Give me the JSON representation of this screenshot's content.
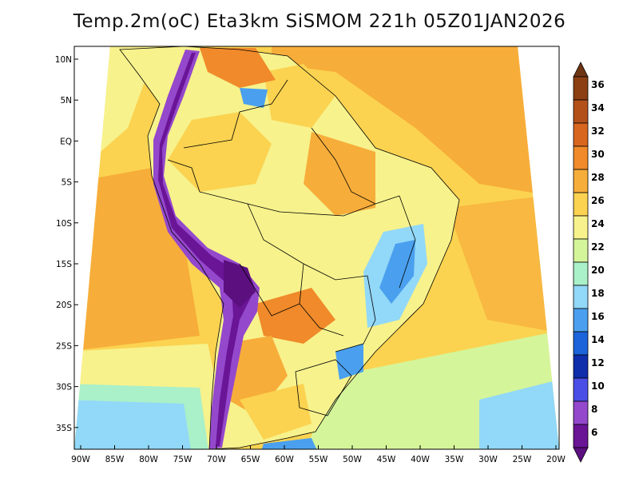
{
  "title": "Temp.2m(oC) Eta3km SiSMOM 221h 05Z01JAN2026",
  "lat_ticks": [
    "10N",
    "5N",
    "EQ",
    "5S",
    "10S",
    "15S",
    "20S",
    "25S",
    "30S",
    "35S"
  ],
  "lon_ticks": [
    "90W",
    "85W",
    "80W",
    "75W",
    "70W",
    "65W",
    "60W",
    "55W",
    "50W",
    "45W",
    "40W",
    "35W",
    "30W",
    "25W",
    "20W"
  ],
  "colorbar": {
    "labels": [
      "36",
      "34",
      "32",
      "30",
      "28",
      "26",
      "24",
      "22",
      "20",
      "18",
      "16",
      "14",
      "12",
      "10",
      "8",
      "6"
    ],
    "colors": [
      "#6e3514",
      "#8c3f12",
      "#b3501a",
      "#d9661f",
      "#f08a2a",
      "#f7ad3a",
      "#fbd350",
      "#f7f28c",
      "#d5f59a",
      "#aaf0c8",
      "#92d8f8",
      "#4aa0ee",
      "#1c64da",
      "#0e2eac",
      "#4a4ee6",
      "#9448cc",
      "#6a1496"
    ],
    "bottom_color": "#5c1080"
  },
  "colors": {
    "ocean_warm": "#f7ad3a",
    "ocean_mid": "#fbd350",
    "ocean_cool": "#f7f28c",
    "ocean_cold": "#92d8f8",
    "land_main": "#f7f28c",
    "land_warm": "#f08a2a",
    "andes": "#6a1496"
  }
}
